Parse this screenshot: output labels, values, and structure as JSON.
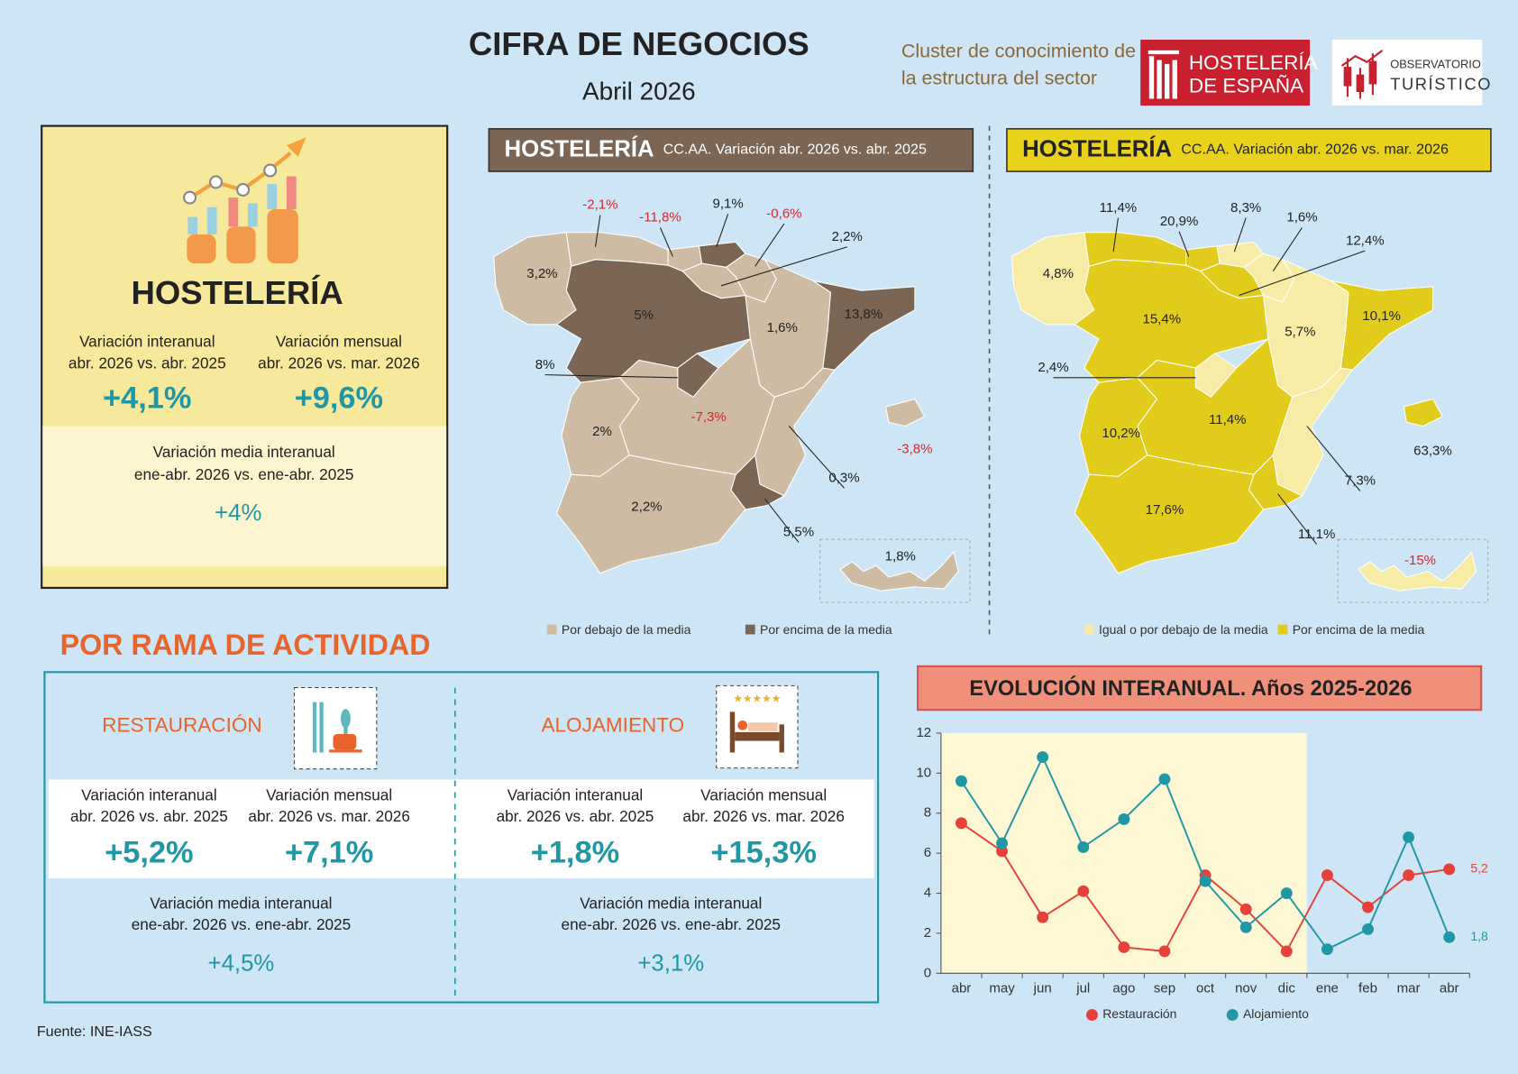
{
  "header": {
    "title": "CIFRA DE NEGOCIOS",
    "subtitle": "Abril 2026",
    "cluster": [
      "Cluster de conocimiento de",
      "la estructura del sector"
    ],
    "logo_hosteleria": [
      "HOSTELERÍA",
      "DE ESPAÑA"
    ],
    "logo_observatorio": [
      "OBSERVATORIO",
      "TURÍSTICO"
    ]
  },
  "summary": {
    "title": "HOSTELERÍA",
    "items": [
      {
        "label": [
          "Variación interanual",
          "abr. 2026 vs. abr. 2025"
        ],
        "value": "+4,1%"
      },
      {
        "label": [
          "Variación mensual",
          "abr. 2026 vs. mar. 2026"
        ],
        "value": "+9,6%"
      }
    ],
    "media": {
      "label": [
        "Variación media interanual",
        "ene-abr. 2026 vs. ene-abr. 2025"
      ],
      "value": "+4%"
    }
  },
  "maps": [
    {
      "title": "HOSTELERÍA",
      "subtitle": "CC.AA. Variación abr. 2026 vs. abr. 2025",
      "legend": [
        "Por debajo de la media",
        "Por encima de la media"
      ],
      "colors": [
        "#cdbba3",
        "#7b6655"
      ],
      "header_color": "#7b6655",
      "header_text_color": "#ffffff",
      "labels": [
        "3,2%",
        "-2,1%",
        "-11,8%",
        "9,1%",
        "-0,6%",
        "2,2%",
        "1,6%",
        "13,8%",
        "5%",
        "8%",
        "-7,3%",
        "2%",
        "0,3%",
        "5,5%",
        "2,2%",
        "-3,8%",
        "1,8%"
      ],
      "above": [
        false,
        false,
        false,
        true,
        false,
        false,
        false,
        true,
        true,
        true,
        false,
        false,
        false,
        true,
        false,
        false,
        false
      ]
    },
    {
      "title": "HOSTELERÍA",
      "subtitle": "CC.AA. Variación abr. 2026 vs. mar. 2026",
      "legend": [
        "Igual o por debajo de la media",
        "Por encima de la media"
      ],
      "colors": [
        "#f7eca6",
        "#e2cc1b"
      ],
      "header_color": "#e8d21c",
      "header_text_color": "#222222",
      "labels": [
        "4,8%",
        "11,4%",
        "20,9%",
        "8,3%",
        "1,6%",
        "12,4%",
        "5,7%",
        "10,1%",
        "15,4%",
        "2,4%",
        "11,4%",
        "10,2%",
        "7,3%",
        "11,1%",
        "17,6%",
        "63,3%",
        "-15%"
      ],
      "above": [
        false,
        true,
        true,
        false,
        false,
        true,
        false,
        true,
        true,
        false,
        true,
        true,
        false,
        true,
        true,
        true,
        false
      ]
    }
  ],
  "ramas": {
    "title": "POR RAMA DE ACTIVIDAD",
    "blocks": [
      {
        "title": "RESTAURACIÓN",
        "items": [
          {
            "label": [
              "Variación interanual",
              "abr. 2026 vs. abr. 2025"
            ],
            "value": "+5,2%"
          },
          {
            "label": [
              "Variación mensual",
              "abr. 2026 vs. mar. 2026"
            ],
            "value": "+7,1%"
          }
        ],
        "media": {
          "label": [
            "Variación media interanual",
            "ene-abr. 2026 vs. ene-abr. 2025"
          ],
          "value": "+4,5%"
        }
      },
      {
        "title": "ALOJAMIENTO",
        "items": [
          {
            "label": [
              "Variación interanual",
              "abr. 2026 vs. abr. 2025"
            ],
            "value": "+1,8%"
          },
          {
            "label": [
              "Variación mensual",
              "abr. 2026 vs. mar. 2026"
            ],
            "value": "+15,3%"
          }
        ],
        "media": {
          "label": [
            "Variación media interanual",
            "ene-abr. 2026 vs. ene-abr. 2025"
          ],
          "value": "+3,1%"
        }
      }
    ]
  },
  "chart_data": {
    "type": "line",
    "title": "EVOLUCIÓN INTERANUAL. Años 2025-2026",
    "categories": [
      "abr",
      "may",
      "jun",
      "jul",
      "ago",
      "sep",
      "oct",
      "nov",
      "dic",
      "ene",
      "feb",
      "mar",
      "abr"
    ],
    "series": [
      {
        "name": "Restauración",
        "color": "#e5403a",
        "values": [
          7.5,
          6.1,
          2.8,
          4.1,
          1.3,
          1.1,
          4.9,
          3.2,
          1.1,
          4.9,
          3.3,
          4.9,
          5.2
        ],
        "value_labels": [
          null,
          null,
          null,
          null,
          null,
          null,
          null,
          null,
          null,
          null,
          null,
          null,
          "5,2"
        ]
      },
      {
        "name": "Alojamiento",
        "color": "#1f97a5",
        "values": [
          9.6,
          6.5,
          10.8,
          6.3,
          7.7,
          9.7,
          4.6,
          2.3,
          4.0,
          1.2,
          2.2,
          6.8,
          1.8
        ],
        "value_labels": [
          null,
          null,
          null,
          null,
          null,
          null,
          null,
          null,
          null,
          null,
          null,
          null,
          "1,8"
        ]
      }
    ],
    "ylim": [
      0,
      12
    ],
    "yticks": [
      0,
      2,
      4,
      6,
      8,
      10,
      12
    ],
    "grid": false
  },
  "source": "Fuente: INE-IASS"
}
